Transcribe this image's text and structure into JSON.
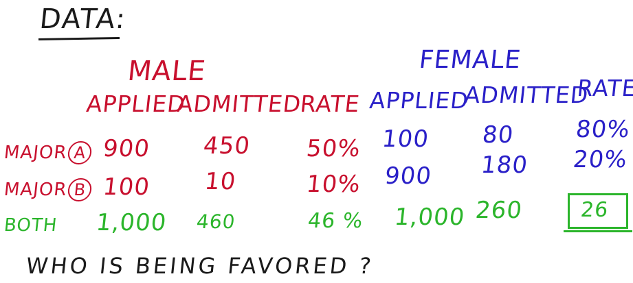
{
  "title": "DATA",
  "title_suffix": ":",
  "male": {
    "label": "MALE",
    "headers": {
      "applied": "APPLIED",
      "admitted": "ADMITTED",
      "rate": "RATE"
    }
  },
  "female": {
    "label": "FEMALE",
    "headers": {
      "applied": "APPLIED",
      "admitted": "ADMITTED",
      "rate": "RATE"
    }
  },
  "rows": [
    {
      "label": "MAJOR",
      "letter": "A",
      "m_applied": "900",
      "m_admitted": "450",
      "m_rate": "50%",
      "f_applied": "100",
      "f_admitted": "80",
      "f_rate": "80%"
    },
    {
      "label": "MAJOR",
      "letter": "B",
      "m_applied": "100",
      "m_admitted": "10",
      "m_rate": "10%",
      "f_applied": "900",
      "f_admitted": "180",
      "f_rate": "20%"
    },
    {
      "label": "BOTH",
      "letter": "",
      "m_applied": "1,000",
      "m_admitted": "460",
      "m_rate": "46 %",
      "f_applied": "1,000",
      "f_admitted": "260",
      "f_rate": "26"
    }
  ],
  "question": "WHO IS BEING FAVORED ?",
  "colors": {
    "male": "#c8102e",
    "female": "#2a20c8",
    "both": "#2bb52b",
    "ink": "#1a1a1a"
  }
}
